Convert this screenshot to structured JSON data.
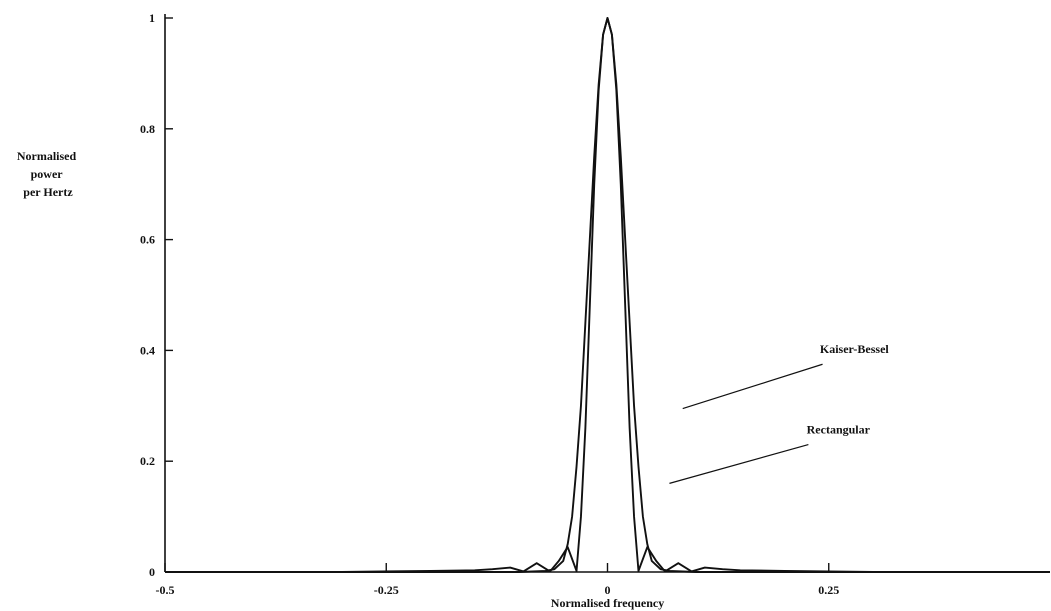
{
  "chart_data": {
    "type": "line",
    "title": "",
    "xlabel": "Normalised frequency",
    "ylabel_lines": [
      "Normalised",
      "power",
      "per Hertz"
    ],
    "xlim": [
      -0.5,
      0.5
    ],
    "ylim": [
      0,
      1
    ],
    "x_ticks": [
      {
        "value": -0.5,
        "label": "-0.5"
      },
      {
        "value": -0.25,
        "label": "-0.25"
      },
      {
        "value": 0,
        "label": "0"
      },
      {
        "value": 0.25,
        "label": "0.25"
      }
    ],
    "y_ticks": [
      {
        "value": 0,
        "label": "0"
      },
      {
        "value": 0.2,
        "label": "0.2"
      },
      {
        "value": 0.4,
        "label": "0.4"
      },
      {
        "value": 0.6,
        "label": "0.6"
      },
      {
        "value": 0.8,
        "label": "0.8"
      },
      {
        "value": 1,
        "label": "1"
      }
    ],
    "grid": false,
    "series": [
      {
        "name": "Rectangular",
        "x": [
          -0.5,
          -0.3,
          -0.2,
          -0.15,
          -0.13,
          -0.11,
          -0.095,
          -0.08,
          -0.065,
          -0.055,
          -0.045,
          -0.035,
          -0.03,
          -0.025,
          -0.02,
          -0.015,
          -0.01,
          -0.005,
          0,
          0.005,
          0.01,
          0.015,
          0.02,
          0.025,
          0.03,
          0.035,
          0.045,
          0.055,
          0.065,
          0.08,
          0.095,
          0.11,
          0.13,
          0.15,
          0.2,
          0.3,
          0.5
        ],
        "y": [
          0,
          0,
          0.002,
          0.003,
          0.005,
          0.008,
          0.001,
          0.016,
          0.001,
          0.02,
          0.045,
          0.002,
          0.1,
          0.26,
          0.48,
          0.7,
          0.87,
          0.97,
          1.0,
          0.97,
          0.87,
          0.7,
          0.48,
          0.26,
          0.1,
          0.002,
          0.045,
          0.02,
          0.001,
          0.016,
          0.001,
          0.008,
          0.005,
          0.003,
          0.002,
          0,
          0
        ]
      },
      {
        "name": "Kaiser-Bessel",
        "x": [
          -0.5,
          -0.1,
          -0.07,
          -0.06,
          -0.05,
          -0.045,
          -0.04,
          -0.035,
          -0.03,
          -0.025,
          -0.02,
          -0.015,
          -0.01,
          -0.005,
          0,
          0.005,
          0.01,
          0.015,
          0.02,
          0.025,
          0.03,
          0.035,
          0.04,
          0.045,
          0.05,
          0.06,
          0.07,
          0.1,
          0.5
        ],
        "y": [
          0,
          0,
          0.002,
          0.005,
          0.02,
          0.05,
          0.1,
          0.19,
          0.3,
          0.45,
          0.6,
          0.75,
          0.88,
          0.97,
          1.0,
          0.97,
          0.88,
          0.75,
          0.6,
          0.45,
          0.3,
          0.19,
          0.1,
          0.05,
          0.02,
          0.005,
          0.002,
          0,
          0
        ]
      }
    ],
    "annotations": [
      {
        "text": "Kaiser-Bessel",
        "series": "Kaiser-Bessel",
        "text_at": [
          0.24,
          0.395
        ],
        "line_from": [
          0.243,
          0.375
        ],
        "line_to": [
          0.085,
          0.295
        ]
      },
      {
        "text": "Rectangular",
        "series": "Rectangular",
        "text_at": [
          0.225,
          0.25
        ],
        "line_from": [
          0.227,
          0.23
        ],
        "line_to": [
          0.07,
          0.16
        ]
      }
    ]
  }
}
